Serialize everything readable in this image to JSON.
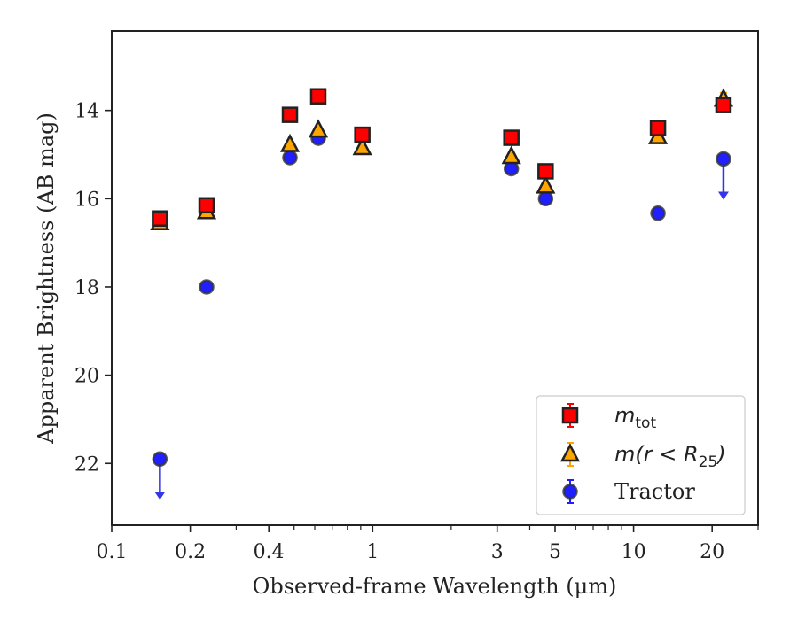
{
  "chart_data": {
    "type": "scatter",
    "title": "",
    "xlabel": "Observed-frame Wavelength (μm)",
    "ylabel": "Apparent Brightness (AB mag)",
    "xscale": "log",
    "xlim": [
      0.1,
      30
    ],
    "ylim": [
      23.4,
      12.2
    ],
    "y_inverted": true,
    "x_tick_labels": [
      "0.1",
      "0.2",
      "0.4",
      "1",
      "3",
      "5",
      "10",
      "20"
    ],
    "x_ticks": [
      0.1,
      0.2,
      0.4,
      1,
      3,
      5,
      10,
      20
    ],
    "y_ticks": [
      14,
      16,
      18,
      20,
      22
    ],
    "y_tick_labels": [
      "14",
      "16",
      "18",
      "20",
      "22"
    ],
    "grid": false,
    "legend_position": "bottom-right",
    "colors": {
      "m_tot": "#ff0000",
      "m_r25": "#ffa500",
      "tractor": "#1f1fff",
      "edge": "#222222",
      "limit_arrow": "#3535e8"
    },
    "series": [
      {
        "key": "m_tot",
        "legend_base": "m",
        "legend_sub": "tot",
        "legend_suffix": "",
        "marker": "square",
        "x": [
          0.153,
          0.231,
          0.482,
          0.619,
          0.913,
          3.4,
          4.6,
          12.4,
          22.1
        ],
        "y": [
          16.45,
          16.15,
          14.1,
          13.68,
          14.55,
          14.62,
          15.38,
          14.4,
          13.88
        ],
        "yerr": [
          0.05,
          0.05,
          0.02,
          0.02,
          0.02,
          0.03,
          0.03,
          0.05,
          0.12
        ]
      },
      {
        "key": "m_r25",
        "legend_base": "m(r < R",
        "legend_sub": "25",
        "legend_suffix": ")",
        "marker": "triangle",
        "x": [
          0.153,
          0.231,
          0.482,
          0.619,
          0.913,
          3.4,
          4.6,
          12.4,
          22.1
        ],
        "y": [
          16.55,
          16.3,
          14.78,
          14.45,
          14.85,
          15.05,
          15.72,
          14.6,
          13.75
        ],
        "yerr": [
          0.05,
          0.05,
          0.02,
          0.02,
          0.02,
          0.03,
          0.03,
          0.05,
          0.15
        ]
      },
      {
        "key": "tractor",
        "legend_label": "Tractor",
        "marker": "circle",
        "x": [
          0.153,
          0.231,
          0.482,
          0.619,
          0.913,
          3.4,
          4.6,
          12.4,
          22.1
        ],
        "y": [
          21.9,
          18.0,
          15.07,
          14.63,
          14.55,
          15.32,
          16.0,
          16.33,
          15.1
        ],
        "yerr": [
          0.05,
          0.05,
          0.02,
          0.02,
          0.02,
          0.03,
          0.03,
          0.05,
          0.1
        ],
        "upper_limit": [
          true,
          false,
          false,
          false,
          false,
          false,
          false,
          false,
          true
        ]
      }
    ]
  }
}
